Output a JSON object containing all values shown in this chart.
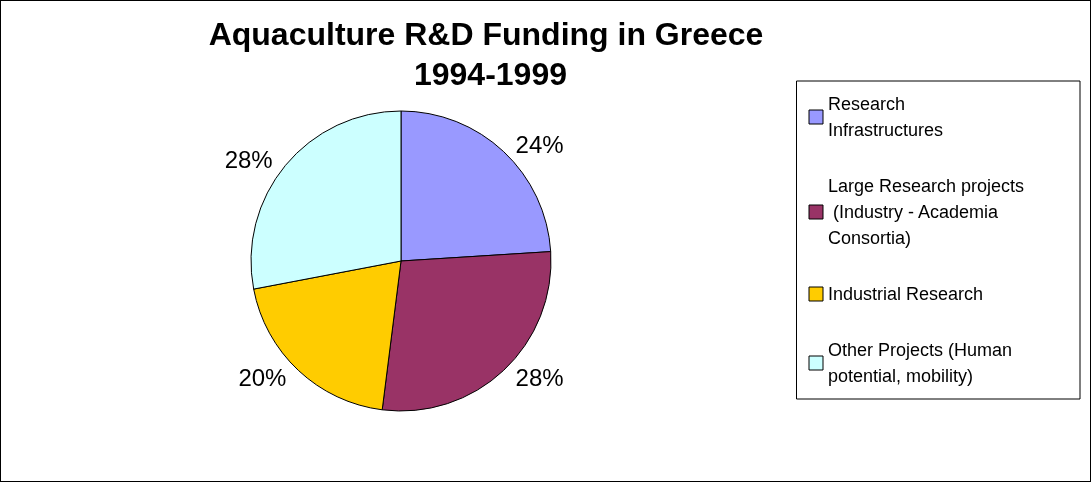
{
  "chart_data": {
    "type": "pie",
    "title": "Aquaculture R&D Funding in Greece 1994-1999",
    "categories": [
      "Research Infrastructures",
      "Large Research projects (Industry - Academia Consortia)",
      "Industrial Research",
      "Other Projects (Human potential, mobility)"
    ],
    "values": [
      24,
      28,
      20,
      28
    ],
    "value_labels": [
      "24%",
      "28%",
      "20%",
      "28%"
    ],
    "colors": [
      "#9999ff",
      "#993366",
      "#ffcc00",
      "#ccffff"
    ],
    "legend": "right"
  }
}
